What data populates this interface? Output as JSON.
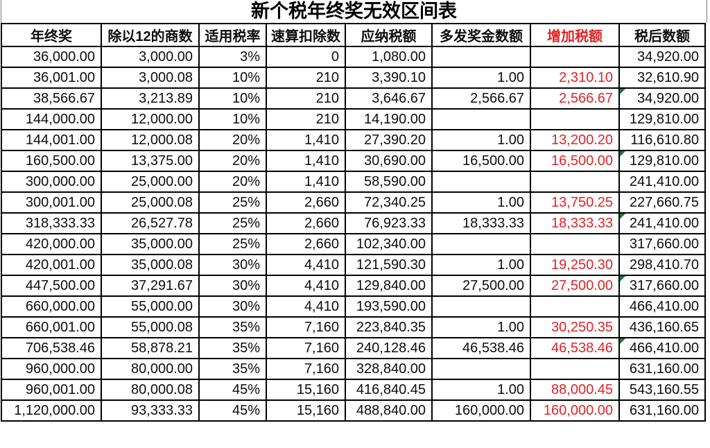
{
  "title": "新个税年终奖无效区间表",
  "colors": {
    "accent_red": "#e32225",
    "flag_green": "#217346",
    "border": "#000000"
  },
  "table": {
    "columns": [
      {
        "label": "年终奖",
        "red": false
      },
      {
        "label": "除以12的商数",
        "red": false
      },
      {
        "label": "适用税率",
        "red": false
      },
      {
        "label": "速算扣除数",
        "red": false
      },
      {
        "label": "应纳税额",
        "red": false
      },
      {
        "label": "多发奖金数额",
        "red": false
      },
      {
        "label": "增加税额",
        "red": true
      },
      {
        "label": "税后数额",
        "red": false
      }
    ],
    "rows": [
      {
        "cells": [
          "36,000.00",
          "3,000.00",
          "3%",
          "0",
          "1,080.00",
          "",
          "",
          "34,920.00"
        ],
        "error_flag": false
      },
      {
        "cells": [
          "36,001.00",
          "3,000.08",
          "10%",
          "210",
          "3,390.10",
          "1.00",
          "2,310.10",
          "32,610.90"
        ],
        "error_flag": false
      },
      {
        "cells": [
          "38,566.67",
          "3,213.89",
          "10%",
          "210",
          "3,646.67",
          "2,566.67",
          "2,566.67",
          "34,920.00"
        ],
        "error_flag": true
      },
      {
        "cells": [
          "144,000.00",
          "12,000.00",
          "10%",
          "210",
          "14,190.00",
          "",
          "",
          "129,810.00"
        ],
        "error_flag": false
      },
      {
        "cells": [
          "144,001.00",
          "12,000.08",
          "20%",
          "1,410",
          "27,390.20",
          "1.00",
          "13,200.20",
          "116,610.80"
        ],
        "error_flag": false
      },
      {
        "cells": [
          "160,500.00",
          "13,375.00",
          "20%",
          "1,410",
          "30,690.00",
          "16,500.00",
          "16,500.00",
          "129,810.00"
        ],
        "error_flag": true
      },
      {
        "cells": [
          "300,000.00",
          "25,000.00",
          "20%",
          "1,410",
          "58,590.00",
          "",
          "",
          "241,410.00"
        ],
        "error_flag": false
      },
      {
        "cells": [
          "300,001.00",
          "25,000.08",
          "25%",
          "2,660",
          "72,340.25",
          "1.00",
          "13,750.25",
          "227,660.75"
        ],
        "error_flag": false
      },
      {
        "cells": [
          "318,333.33",
          "26,527.78",
          "25%",
          "2,660",
          "76,923.33",
          "18,333.33",
          "18,333.33",
          "241,410.00"
        ],
        "error_flag": true
      },
      {
        "cells": [
          "420,000.00",
          "35,000.00",
          "25%",
          "2,660",
          "102,340.00",
          "",
          "",
          "317,660.00"
        ],
        "error_flag": false
      },
      {
        "cells": [
          "420,001.00",
          "35,000.08",
          "30%",
          "4,410",
          "121,590.30",
          "1.00",
          "19,250.30",
          "298,410.70"
        ],
        "error_flag": false
      },
      {
        "cells": [
          "447,500.00",
          "37,291.67",
          "30%",
          "4,410",
          "129,840.00",
          "27,500.00",
          "27,500.00",
          "317,660.00"
        ],
        "error_flag": true
      },
      {
        "cells": [
          "660,000.00",
          "55,000.00",
          "30%",
          "4,410",
          "193,590.00",
          "",
          "",
          "466,410.00"
        ],
        "error_flag": false
      },
      {
        "cells": [
          "660,001.00",
          "55,000.08",
          "35%",
          "7,160",
          "223,840.35",
          "1.00",
          "30,250.35",
          "436,160.65"
        ],
        "error_flag": false
      },
      {
        "cells": [
          "706,538.46",
          "58,878.21",
          "35%",
          "7,160",
          "240,128.46",
          "46,538.46",
          "46,538.46",
          "466,410.00"
        ],
        "error_flag": true
      },
      {
        "cells": [
          "960,000.00",
          "80,000.00",
          "35%",
          "7,160",
          "328,840.00",
          "",
          "",
          "631,160.00"
        ],
        "error_flag": false
      },
      {
        "cells": [
          "960,001.00",
          "80,000.08",
          "45%",
          "15,160",
          "416,840.45",
          "1.00",
          "88,000.45",
          "543,160.55"
        ],
        "error_flag": false
      },
      {
        "cells": [
          "1,120,000.00",
          "93,333.33",
          "45%",
          "15,160",
          "488,840.00",
          "160,000.00",
          "160,000.00",
          "631,160.00"
        ],
        "error_flag": false
      }
    ]
  }
}
